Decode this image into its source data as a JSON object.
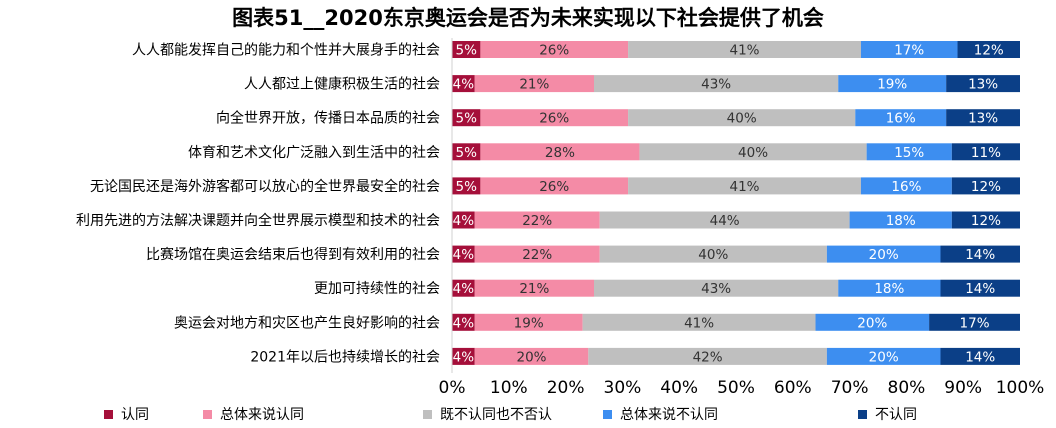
{
  "chart_data": {
    "type": "bar",
    "orientation": "horizontal",
    "stacked": "percent",
    "title": "图表51__2020东京奥运会是否为未来实现以下社会提供了机会",
    "categories": [
      "人人都能发挥自己的能力和个性并大展身手的社会",
      "人人都过上健康积极生活的社会",
      "向全世界开放，传播日本品质的社会",
      "体育和艺术文化广泛融入到生活中的社会",
      "无论国民还是海外游客都可以放心的全世界最安全的社会",
      "利用先进的方法解决课题并向全世界展示模型和技术的社会",
      "比赛场馆在奥运会结束后也得到有效利用的社会",
      "更加可持续性的社会",
      "奥运会对地方和灾区也产生良好影响的社会",
      "2021年以后也持续增长的社会"
    ],
    "series": [
      {
        "name": "认同",
        "color": "#A50F3A",
        "label_color": "#ffffff",
        "values": [
          5,
          4,
          5,
          5,
          5,
          4,
          4,
          4,
          4,
          4
        ]
      },
      {
        "name": "总体来说认同",
        "color": "#F48BA6",
        "label_color": "#333333",
        "values": [
          26,
          21,
          26,
          28,
          26,
          22,
          22,
          21,
          19,
          20
        ]
      },
      {
        "name": "既不认同也不否认",
        "color": "#BFBFBF",
        "label_color": "#333333",
        "values": [
          41,
          43,
          40,
          40,
          41,
          44,
          40,
          43,
          41,
          42
        ]
      },
      {
        "name": "总体来说不认同",
        "color": "#3D8EF0",
        "label_color": "#ffffff",
        "values": [
          17,
          19,
          16,
          15,
          16,
          18,
          20,
          18,
          20,
          20
        ]
      },
      {
        "name": "不认同",
        "color": "#0B3F87",
        "label_color": "#ffffff",
        "values": [
          12,
          13,
          13,
          11,
          12,
          12,
          14,
          14,
          17,
          14
        ]
      }
    ],
    "xlim": [
      0,
      100
    ],
    "x_ticks": [
      "0%",
      "10%",
      "20%",
      "30%",
      "40%",
      "50%",
      "60%",
      "70%",
      "80%",
      "90%",
      "100%"
    ],
    "value_suffix": "%",
    "grid": false,
    "legend_position": "bottom"
  }
}
